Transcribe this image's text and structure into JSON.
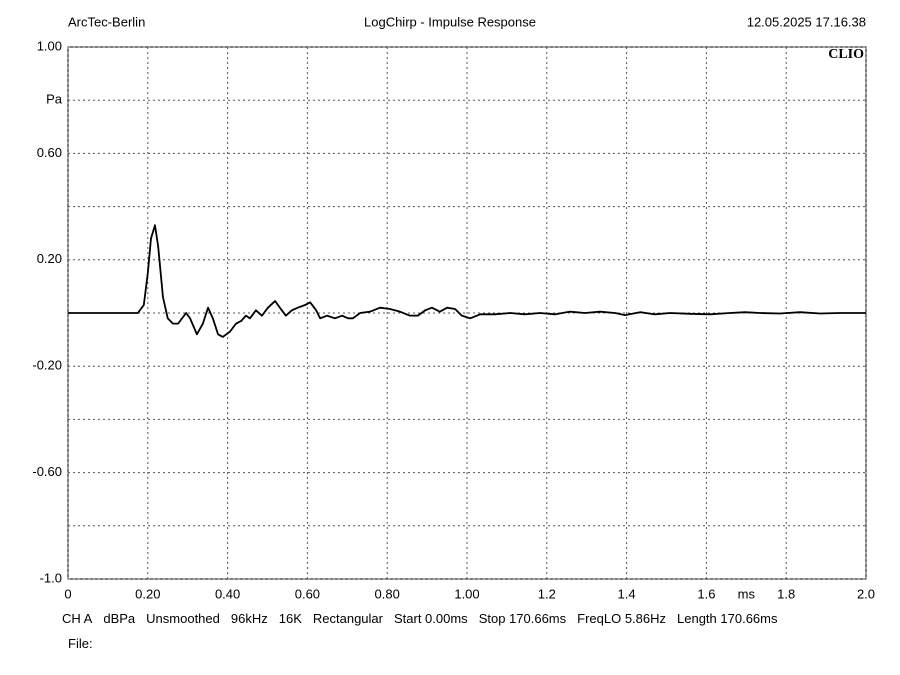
{
  "header": {
    "left": "ArcTec-Berlin",
    "title": "LogChirp - Impulse Response",
    "right": "12.05.2025 17.16.38"
  },
  "logo": "CLIO",
  "chart_data": {
    "type": "line",
    "x": [
      0,
      0.175,
      0.19,
      0.2,
      0.208,
      0.218,
      0.226,
      0.238,
      0.25,
      0.263,
      0.276,
      0.296,
      0.306,
      0.323,
      0.338,
      0.351,
      0.363,
      0.376,
      0.388,
      0.406,
      0.421,
      0.434,
      0.446,
      0.456,
      0.471,
      0.486,
      0.501,
      0.519,
      0.531,
      0.546,
      0.561,
      0.576,
      0.594,
      0.607,
      0.622,
      0.632,
      0.649,
      0.669,
      0.687,
      0.702,
      0.714,
      0.732,
      0.757,
      0.782,
      0.807,
      0.832,
      0.857,
      0.877,
      0.895,
      0.912,
      0.932,
      0.95,
      0.97,
      0.987,
      1.008,
      1.033,
      1.07,
      1.108,
      1.145,
      1.183,
      1.22,
      1.258,
      1.296,
      1.333,
      1.371,
      1.396,
      1.434,
      1.471,
      1.509,
      1.559,
      1.609,
      1.659,
      1.697,
      1.734,
      1.784,
      1.835,
      1.885,
      1.935,
      2.0
    ],
    "series": [
      {
        "color": "#000000",
        "values": [
          0,
          0,
          0.03,
          0.15,
          0.28,
          0.33,
          0.25,
          0.06,
          -0.02,
          -0.04,
          -0.04,
          0.0,
          -0.02,
          -0.08,
          -0.04,
          0.02,
          -0.02,
          -0.08,
          -0.09,
          -0.07,
          -0.04,
          -0.03,
          -0.01,
          -0.02,
          0.01,
          -0.01,
          0.02,
          0.045,
          0.02,
          -0.01,
          0.01,
          0.02,
          0.03,
          0.04,
          0.01,
          -0.02,
          -0.01,
          -0.02,
          -0.01,
          -0.02,
          -0.02,
          0.0,
          0.005,
          0.02,
          0.015,
          0.005,
          -0.01,
          -0.01,
          0.01,
          0.02,
          0.005,
          0.02,
          0.015,
          -0.01,
          -0.02,
          -0.005,
          -0.005,
          0.0,
          -0.005,
          0.0,
          -0.005,
          0.005,
          0.0,
          0.005,
          0.0,
          -0.008,
          0.003,
          -0.005,
          0.0,
          -0.003,
          -0.005,
          0.0,
          0.003,
          0.0,
          -0.002,
          0.003,
          -0.002,
          0.0,
          0.0
        ]
      }
    ],
    "xlim": [
      0,
      2.0
    ],
    "ylim": [
      -1.0,
      1.0
    ],
    "xticks": [
      0,
      {
        "value": 0.2,
        "label": "0.20"
      },
      {
        "value": 0.4,
        "label": "0.40"
      },
      {
        "value": 0.6,
        "label": "0.60"
      },
      {
        "value": 0.8,
        "label": "0.80"
      },
      {
        "value": 1.0,
        "label": "1.00"
      },
      {
        "value": 1.2,
        "label": "1.2"
      },
      {
        "value": 1.4,
        "label": "1.4"
      },
      {
        "value": 1.6,
        "label": "1.6"
      },
      {
        "value": 1.8,
        "label": "1.8"
      },
      {
        "value": 2.0,
        "label": "2.0"
      }
    ],
    "yticks": [
      {
        "value": 1.0,
        "label": "1.00"
      },
      {
        "value": 0.8,
        "label": "Pa"
      },
      {
        "value": 0.6,
        "label": "0.60"
      },
      {
        "value": 0.2,
        "label": "0.20"
      },
      {
        "value": -0.2,
        "label": "-0.20"
      },
      {
        "value": -0.6,
        "label": "-0.60"
      },
      {
        "value": -1.0,
        "label": "-1.0"
      }
    ],
    "minor_yticks": [
      0.4,
      0,
      -0.4,
      -0.8
    ],
    "x_unit": "ms",
    "grid": true
  },
  "footer": [
    "CH A",
    "dBPa",
    "Unsmoothed",
    "96kHz",
    "16K",
    "Rectangular",
    "Start 0.00ms",
    "Stop 170.66ms",
    "FreqLO 5.86Hz",
    "Length 170.66ms"
  ],
  "file_label": "File:"
}
